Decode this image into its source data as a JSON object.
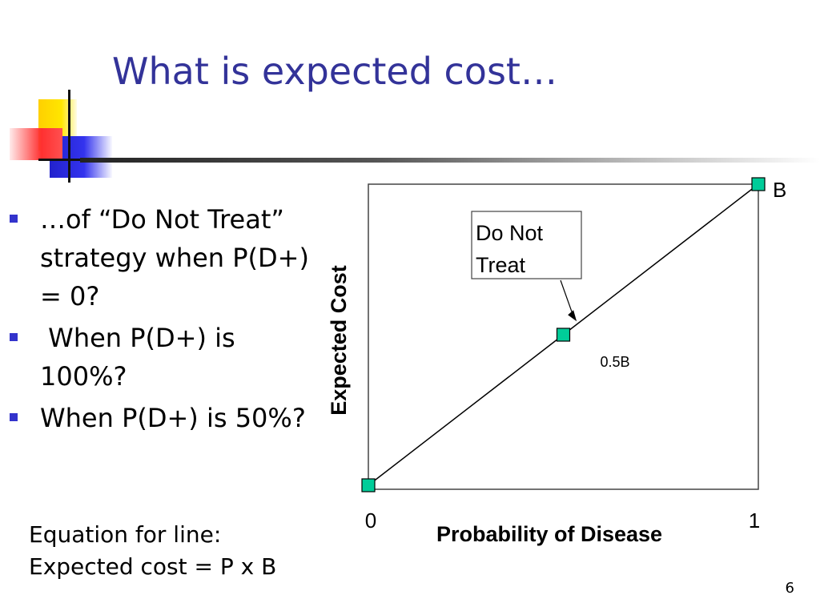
{
  "slide": {
    "title": "What is expected cost…",
    "bullets": [
      "…of “Do Not Treat” strategy when P(D+) = 0?",
      " When P(D+) is 100%?",
      "When P(D+) is 50%?"
    ],
    "equation_line1": "Equation for line:",
    "equation_line2": "Expected cost = P x B",
    "page_number": "6"
  },
  "colors": {
    "title": "#333399",
    "bullet_marker": "#3333cc",
    "marker_fill": "#00cc99"
  },
  "chart_data": {
    "type": "line",
    "xlabel": "Probability of Disease",
    "ylabel": "Expected Cost",
    "x_ticks": [
      "0",
      "1"
    ],
    "xlim": [
      0,
      1
    ],
    "ylim": [
      0,
      1
    ],
    "series": [
      {
        "x": [
          0,
          0.5,
          1
        ],
        "y": [
          0,
          0.5,
          1
        ]
      }
    ],
    "point_labels": [
      {
        "x": 0.5,
        "y": 0.5,
        "text": "0.5B"
      },
      {
        "x": 1,
        "y": 1,
        "text": "B"
      }
    ],
    "annotation": {
      "text_lines": [
        "Do Not",
        "Treat"
      ],
      "points_to": {
        "x": 0.53,
        "y": 0.55
      }
    },
    "grid": false
  }
}
